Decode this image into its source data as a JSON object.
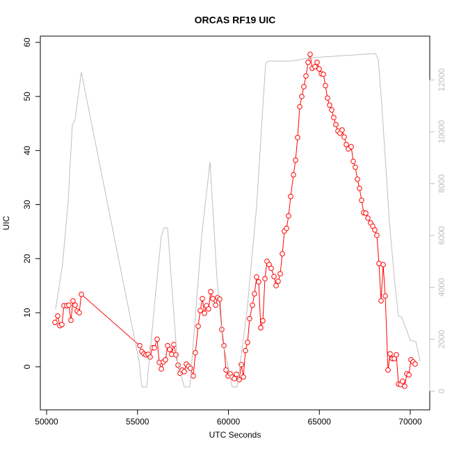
{
  "chart_data": {
    "type": "line",
    "title": "ORCAS RF19 UIC",
    "xlabel": "UTC Seconds",
    "ylabel": "UIC",
    "xlim": [
      49656,
      71071
    ],
    "ylim": [
      -7.97,
      61.16
    ],
    "y2lim": [
      -723,
      13688
    ],
    "xticks": [
      50000,
      55000,
      60000,
      65000,
      70000
    ],
    "yticks": [
      0,
      10,
      20,
      30,
      40,
      50,
      60
    ],
    "y2ticks": [
      0,
      2000,
      4000,
      6000,
      8000,
      10000,
      12000
    ],
    "series": [
      {
        "color": "#ff0000",
        "markers": true,
        "x": [
          50459,
          50612,
          50727,
          50841,
          50956,
          51109,
          51224,
          51338,
          51453,
          51568,
          51683,
          51797,
          51912,
          55124,
          55239,
          55354,
          55468,
          55583,
          55698,
          55813,
          55927,
          56080,
          56195,
          56310,
          56424,
          56539,
          56654,
          56769,
          56883,
          56998,
          57113,
          57228,
          57342,
          57457,
          57572,
          57686,
          57801,
          57916,
          58069,
          58184,
          58337,
          58451,
          58566,
          58681,
          58795,
          58910,
          59025,
          59140,
          59293,
          59407,
          59522,
          59637,
          59751,
          59866,
          59981,
          60096,
          60210,
          60325,
          60440,
          60593,
          60707,
          60822,
          60937,
          61052,
          61166,
          61319,
          61434,
          61549,
          61663,
          61778,
          61893,
          62008,
          62122,
          62237,
          62352,
          62505,
          62620,
          62734,
          62849,
          62964,
          63078,
          63193,
          63308,
          63423,
          63576,
          63690,
          63805,
          63920,
          64034,
          64149,
          64264,
          64379,
          64493,
          64608,
          64761,
          64876,
          64990,
          65105,
          65220,
          65335,
          65449,
          65564,
          65679,
          65793,
          65908,
          66023,
          66138,
          66252,
          66367,
          66482,
          66597,
          66750,
          66864,
          66979,
          67094,
          67208,
          67323,
          67438,
          67553,
          67667,
          67820,
          67935,
          68050,
          68164,
          68279,
          68394,
          68509,
          68623,
          68776,
          68891,
          69006,
          69120,
          69235,
          69350,
          69465,
          69579,
          69694,
          69809,
          69924,
          70038,
          70153,
          70268
        ],
        "values": [
          8.2,
          9.4,
          7.6,
          7.8,
          11.3,
          11.3,
          11.4,
          8.6,
          12.2,
          11.4,
          10.3,
          10.0,
          13.4,
          3.9,
          2.8,
          2.4,
          2.2,
          2.3,
          1.8,
          3.5,
          3.5,
          5.1,
          0.8,
          -0.4,
          0.9,
          1.3,
          3.9,
          3.2,
          2.3,
          4.1,
          2.2,
          0.3,
          -1.2,
          -0.6,
          -0.9,
          0.5,
          0.1,
          -0.3,
          -1.7,
          2.6,
          7.5,
          10.4,
          12.6,
          9.9,
          11.3,
          10.7,
          13.9,
          12.6,
          11.4,
          12.8,
          12.5,
          6.9,
          3.9,
          -0.6,
          -1.7,
          -1.3,
          -1.9,
          -2.2,
          -1.4,
          -2.4,
          0.4,
          -1.9,
          3.0,
          4.5,
          8.9,
          11.4,
          13.5,
          16.6,
          15.7,
          7.2,
          8.5,
          16.3,
          19.5,
          18.9,
          18.2,
          16.7,
          15.0,
          15.8,
          17.2,
          20.9,
          25.1,
          25.6,
          27.9,
          31.5,
          35.5,
          38.2,
          42.4,
          48.1,
          50.0,
          51.8,
          53.8,
          56.3,
          57.8,
          55.2,
          55.5,
          56.3,
          55.1,
          54.2,
          54.1,
          52.0,
          49.7,
          48.4,
          47.5,
          46.1,
          44.8,
          43.6,
          43.2,
          43.8,
          42.5,
          41.1,
          40.3,
          40.7,
          38.0,
          36.9,
          34.7,
          33.0,
          30.8,
          28.5,
          28.4,
          27.5,
          26.6,
          26.0,
          25.3,
          24.3,
          19.1,
          12.2,
          18.9,
          13.1,
          -0.6,
          2.4,
          1.5,
          1.5,
          2.2,
          -3.2,
          -3.3,
          -2.7,
          -3.6,
          -1.3,
          -1.5,
          1.3,
          0.9,
          0.5
        ]
      },
      {
        "color": "#bebebe",
        "markers": false,
        "axis": "y2",
        "x": [
          50497,
          50880,
          51186,
          51415,
          51568,
          51912,
          55086,
          55239,
          55507,
          56004,
          56310,
          56463,
          56654,
          57189,
          57572,
          57878,
          58528,
          58987,
          59369,
          59675,
          60210,
          60478,
          61013,
          61549,
          62046,
          62199,
          63384,
          64646,
          68088,
          68241,
          68432,
          68853,
          69159,
          69350,
          69541,
          70000,
          70306,
          70535
        ],
        "values": [
          3161,
          4902,
          7313,
          10260,
          10474,
          12295,
          1152,
          161,
          161,
          3831,
          5974,
          6295,
          6295,
          1152,
          161,
          161,
          5974,
          8840,
          4366,
          1956,
          161,
          161,
          3027,
          7126,
          12644,
          12725,
          12725,
          12858,
          13019,
          12778,
          11063,
          6510,
          4099,
          2893,
          2840,
          1956,
          1902,
          1152
        ]
      }
    ]
  }
}
